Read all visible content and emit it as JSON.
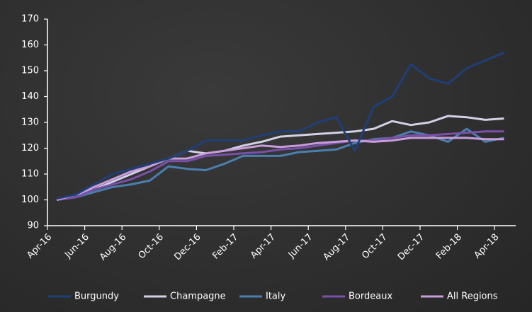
{
  "chart_data": {
    "type": "line",
    "categories": [
      "Apr-16",
      null,
      "Jun-16",
      null,
      "Aug-16",
      null,
      "Oct-16",
      null,
      "Dec-16",
      null,
      "Feb-17",
      null,
      "Apr-17",
      null,
      "Jun-17",
      null,
      "Aug-17",
      null,
      "Oct-17",
      null,
      "Dec-17",
      null,
      "Feb-18",
      null,
      "Apr-18"
    ],
    "series": [
      {
        "name": "Burgundy",
        "color": "#1f3f78",
        "values": [
          100.5,
          102,
          106,
          110,
          112,
          114,
          116,
          119,
          123,
          123,
          123,
          125,
          126.5,
          126.5,
          130,
          132,
          119,
          136,
          140,
          152.5,
          147,
          145,
          151,
          154,
          157
        ]
      },
      {
        "name": "Champagne",
        "color": "#d2d2e6",
        "values": [
          100,
          102,
          104,
          107,
          110,
          113,
          116,
          119,
          118,
          119,
          121,
          122.5,
          124.5,
          125,
          125.5,
          126,
          126.5,
          127.5,
          130.5,
          129,
          130,
          132.5,
          132,
          131,
          131.5
        ]
      },
      {
        "name": "Italy",
        "color": "#4a7fb0",
        "values": [
          100,
          101,
          103,
          105,
          106,
          107.5,
          113,
          112,
          111.5,
          114,
          117,
          117,
          117,
          118.5,
          119,
          119.5,
          122,
          123.5,
          124,
          126.5,
          125,
          122.5,
          127.5,
          122.5,
          124
        ]
      },
      {
        "name": "Bordeaux",
        "color": "#7a50a8",
        "values": [
          100,
          101,
          104,
          106,
          108,
          111,
          115,
          115,
          117,
          117.5,
          118,
          118.5,
          119.5,
          120,
          121,
          122,
          123,
          123,
          124,
          125,
          125,
          125.5,
          126,
          126.5,
          126.5
        ]
      },
      {
        "name": "All Regions",
        "color": "#c99ddb",
        "values": [
          100,
          102,
          105,
          108,
          111,
          113,
          116,
          116,
          118,
          119,
          120,
          121,
          120.5,
          121,
          122,
          122.5,
          123,
          122.5,
          123,
          124,
          124,
          124,
          124,
          123.5,
          123.5
        ]
      }
    ],
    "ylim": [
      90,
      170
    ],
    "yticks": [
      90,
      100,
      110,
      120,
      130,
      140,
      150,
      160,
      170
    ]
  }
}
